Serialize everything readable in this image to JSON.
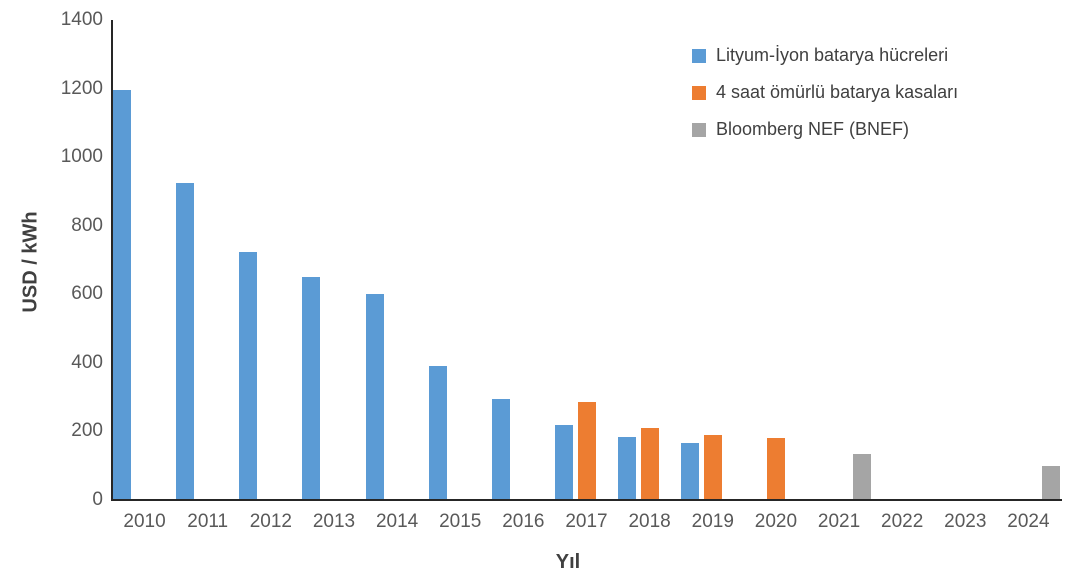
{
  "chart_data": {
    "type": "bar",
    "title": "",
    "xlabel": "Yıl",
    "ylabel": "USD / kWh",
    "categories": [
      "2010",
      "2011",
      "2012",
      "2013",
      "2014",
      "2015",
      "2016",
      "2017",
      "2018",
      "2019",
      "2020",
      "2021",
      "2022",
      "2023",
      "2024"
    ],
    "series": [
      {
        "name": "Lityum-İyon batarya hücreleri",
        "color": "#5B9BD5",
        "values": [
          1195,
          925,
          723,
          650,
          600,
          390,
          295,
          220,
          185,
          165,
          null,
          null,
          null,
          null,
          null
        ]
      },
      {
        "name": "4 saat ömürlü batarya kasaları",
        "color": "#ED7D31",
        "values": [
          null,
          null,
          null,
          null,
          null,
          null,
          null,
          285,
          210,
          190,
          180,
          null,
          null,
          null,
          null
        ]
      },
      {
        "name": "Bloomberg NEF (BNEF)",
        "color": "#A5A5A5",
        "values": [
          null,
          null,
          null,
          null,
          null,
          null,
          null,
          null,
          null,
          null,
          null,
          135,
          null,
          null,
          100
        ]
      }
    ],
    "ylim": [
      0,
      1400
    ],
    "yticks": [
      0,
      200,
      400,
      600,
      800,
      1000,
      1200,
      1400
    ],
    "grid": false,
    "legend_position": "top-right"
  },
  "colors": {
    "axis_line": "#262626",
    "tick_label": "#595959",
    "axis_title": "#404040",
    "background": "#ffffff"
  }
}
